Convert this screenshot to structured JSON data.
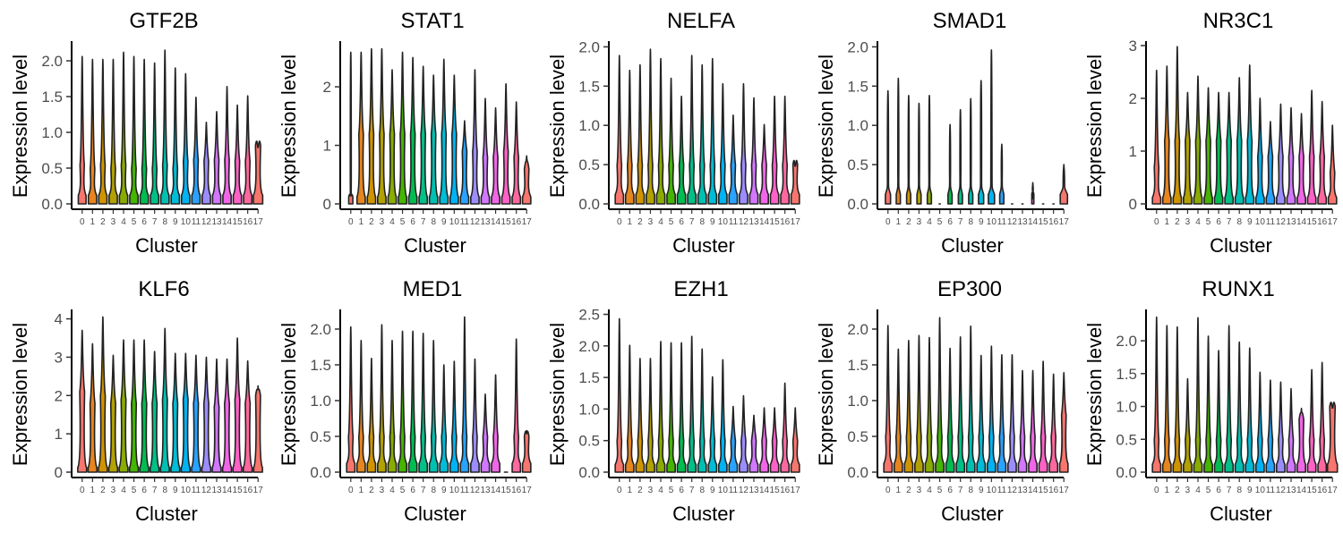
{
  "figure": {
    "ylabel": "Expression level",
    "xlabel": "Cluster"
  },
  "chart_data": [
    {
      "type": "violin",
      "title": "GTF2B",
      "xlabel": "Cluster",
      "ylabel": "Expression level",
      "categories": [
        "0",
        "1",
        "2",
        "3",
        "4",
        "5",
        "6",
        "7",
        "8",
        "9",
        "10",
        "11",
        "12",
        "13",
        "14",
        "15",
        "16",
        "17"
      ],
      "ylim": [
        0,
        2.25
      ],
      "yticks": [
        0,
        0.5,
        1.0,
        1.5,
        2.0
      ],
      "ytick_labels": [
        "0.0",
        "0.5",
        "1.0",
        "1.5",
        "2.0"
      ],
      "max": [
        2.06,
        2.02,
        2.02,
        2.02,
        2.12,
        2.06,
        2.02,
        1.97,
        2.15,
        1.9,
        1.82,
        1.49,
        1.14,
        1.29,
        1.64,
        1.38,
        1.51,
        0.82
      ],
      "upper_mode": [
        0.55,
        0.5,
        0.55,
        0.5,
        0.55,
        0.5,
        0.5,
        0.5,
        0.55,
        0.5,
        0.6,
        0.62,
        0.6,
        0.62,
        0.62,
        0.6,
        0.6,
        0.82
      ],
      "base_width": [
        0.75,
        0.8,
        0.8,
        0.8,
        0.8,
        0.8,
        0.8,
        0.8,
        0.8,
        0.8,
        0.8,
        0.8,
        0.8,
        0.8,
        0.8,
        0.8,
        0.8,
        0.9
      ]
    },
    {
      "type": "violin",
      "title": "STAT1",
      "xlabel": "Cluster",
      "ylabel": "Expression level",
      "categories": [
        "0",
        "1",
        "2",
        "3",
        "4",
        "5",
        "6",
        "7",
        "8",
        "9",
        "10",
        "11",
        "12",
        "13",
        "14",
        "15",
        "16",
        "17"
      ],
      "ylim": [
        0,
        2.75
      ],
      "yticks": [
        0,
        1,
        2
      ],
      "ytick_labels": [
        "0",
        "1",
        "2"
      ],
      "max": [
        2.59,
        2.59,
        2.65,
        2.65,
        2.29,
        2.59,
        2.5,
        2.35,
        2.2,
        2.47,
        2.2,
        1.42,
        2.29,
        1.8,
        1.64,
        2.05,
        1.74,
        0.82
      ],
      "upper_mode": [
        0.2,
        1.2,
        1.2,
        1.2,
        1.2,
        1.2,
        1.2,
        1.2,
        1.2,
        1.2,
        1.2,
        0.9,
        0.9,
        0.8,
        0.8,
        0.9,
        0.8,
        0.6
      ],
      "base_width": [
        0.4,
        0.8,
        0.8,
        0.8,
        0.8,
        0.8,
        0.8,
        0.8,
        0.8,
        0.8,
        0.8,
        0.8,
        0.8,
        0.8,
        0.8,
        0.8,
        0.8,
        0.8
      ]
    },
    {
      "type": "violin",
      "title": "NELFA",
      "xlabel": "Cluster",
      "ylabel": "Expression level",
      "categories": [
        "0",
        "1",
        "2",
        "3",
        "4",
        "5",
        "6",
        "7",
        "8",
        "9",
        "10",
        "11",
        "12",
        "13",
        "14",
        "15",
        "16",
        "17"
      ],
      "ylim": [
        0,
        2.05
      ],
      "yticks": [
        0,
        0.5,
        1.0,
        1.5,
        2.0
      ],
      "ytick_labels": [
        "0.0",
        "0.5",
        "1.0",
        "1.5",
        "2.0"
      ],
      "max": [
        1.89,
        1.7,
        1.77,
        1.97,
        1.85,
        1.6,
        1.37,
        1.89,
        1.77,
        1.85,
        1.53,
        1.13,
        1.53,
        1.35,
        1.01,
        1.37,
        1.37,
        0.51
      ],
      "upper_mode": [
        0.5,
        0.5,
        0.5,
        0.5,
        0.5,
        0.5,
        0.5,
        0.5,
        0.5,
        0.5,
        0.5,
        0.5,
        0.5,
        0.5,
        0.5,
        0.5,
        0.5,
        0.5
      ],
      "base_width": [
        0.8,
        0.8,
        0.8,
        0.8,
        0.8,
        0.8,
        0.8,
        0.8,
        0.8,
        0.8,
        0.8,
        0.8,
        0.8,
        0.8,
        0.8,
        0.8,
        0.8,
        0.8
      ]
    },
    {
      "type": "violin",
      "title": "SMAD1",
      "xlabel": "Cluster",
      "ylabel": "Expression level",
      "categories": [
        "0",
        "1",
        "2",
        "3",
        "4",
        "5",
        "6",
        "7",
        "8",
        "9",
        "10",
        "11",
        "12",
        "13",
        "14",
        "15",
        "16",
        "17"
      ],
      "ylim": [
        0,
        2.05
      ],
      "yticks": [
        0,
        0.5,
        1.0,
        1.5,
        2.0
      ],
      "ytick_labels": [
        "0.0",
        "0.5",
        "1.0",
        "1.5",
        "2.0"
      ],
      "max": [
        1.44,
        1.6,
        1.38,
        1.28,
        1.38,
        0.0,
        1.01,
        1.2,
        1.34,
        1.57,
        1.96,
        0.76,
        0.0,
        0.0,
        0.27,
        0.0,
        0.0,
        0.5
      ],
      "upper_mode": [
        0.3,
        0.3,
        0.3,
        0.3,
        0.3,
        0.0,
        0.3,
        0.3,
        0.3,
        0.3,
        0.3,
        0.3,
        0.0,
        0.0,
        0.1,
        0.0,
        0.0,
        0.3
      ],
      "base_width": [
        0.5,
        0.4,
        0.4,
        0.4,
        0.4,
        0.2,
        0.4,
        0.4,
        0.4,
        0.5,
        0.6,
        0.4,
        0.2,
        0.2,
        0.2,
        0.2,
        0.2,
        0.7
      ]
    },
    {
      "type": "violin",
      "title": "NR3C1",
      "xlabel": "Cluster",
      "ylabel": "Expression level",
      "categories": [
        "0",
        "1",
        "2",
        "3",
        "4",
        "5",
        "6",
        "7",
        "8",
        "9",
        "10",
        "11",
        "12",
        "13",
        "14",
        "15",
        "16",
        "17"
      ],
      "ylim": [
        0,
        3.05
      ],
      "yticks": [
        0,
        1,
        2,
        3
      ],
      "ytick_labels": [
        "0",
        "1",
        "2",
        "3"
      ],
      "max": [
        2.53,
        2.61,
        2.98,
        2.11,
        2.42,
        2.2,
        2.11,
        2.11,
        2.39,
        2.63,
        2.0,
        1.56,
        1.89,
        1.82,
        1.71,
        2.15,
        1.94,
        1.49
      ],
      "upper_mode": [
        0.7,
        1.2,
        1.2,
        1.2,
        1.2,
        1.2,
        1.2,
        1.2,
        1.2,
        1.2,
        0.9,
        0.9,
        0.9,
        0.9,
        0.9,
        0.9,
        0.9,
        0.6
      ],
      "base_width": [
        0.8,
        0.8,
        0.8,
        0.8,
        0.8,
        0.8,
        0.8,
        0.8,
        0.8,
        0.8,
        0.8,
        0.8,
        0.8,
        0.8,
        0.8,
        0.8,
        0.8,
        0.8
      ]
    },
    {
      "type": "violin",
      "title": "KLF6",
      "xlabel": "Cluster",
      "ylabel": "Expression level",
      "categories": [
        "0",
        "1",
        "2",
        "3",
        "4",
        "5",
        "6",
        "7",
        "8",
        "9",
        "10",
        "11",
        "12",
        "13",
        "14",
        "15",
        "16",
        "17"
      ],
      "ylim": [
        0,
        4.2
      ],
      "yticks": [
        0,
        1,
        2,
        3,
        4
      ],
      "ytick_labels": [
        "0",
        "1",
        "2",
        "3",
        "4"
      ],
      "max": [
        3.7,
        3.35,
        4.05,
        3.05,
        3.45,
        3.45,
        3.45,
        3.15,
        3.75,
        3.1,
        3.1,
        3.05,
        3.0,
        2.95,
        2.95,
        3.5,
        2.9,
        2.25
      ],
      "upper_mode": [
        2.1,
        1.8,
        2.0,
        1.8,
        1.9,
        1.8,
        1.8,
        1.8,
        1.9,
        1.8,
        1.9,
        1.8,
        1.8,
        1.7,
        1.8,
        1.9,
        1.8,
        2.0
      ],
      "base_width": [
        0.85,
        0.85,
        0.85,
        0.85,
        0.85,
        0.85,
        0.85,
        0.85,
        0.85,
        0.85,
        0.85,
        0.85,
        0.85,
        0.85,
        0.85,
        0.85,
        0.85,
        0.85
      ]
    },
    {
      "type": "violin",
      "title": "MED1",
      "xlabel": "Cluster",
      "ylabel": "Expression level",
      "categories": [
        "0",
        "1",
        "2",
        "3",
        "4",
        "5",
        "6",
        "7",
        "8",
        "9",
        "10",
        "11",
        "12",
        "13",
        "14",
        "15",
        "16",
        "17"
      ],
      "ylim": [
        0,
        2.25
      ],
      "yticks": [
        0,
        0.5,
        1.0,
        1.5,
        2.0
      ],
      "ytick_labels": [
        "0.0",
        "0.5",
        "1.0",
        "1.5",
        "2.0"
      ],
      "max": [
        2.03,
        1.84,
        1.59,
        2.06,
        1.84,
        1.97,
        1.97,
        1.94,
        1.84,
        1.5,
        1.55,
        2.17,
        1.58,
        1.09,
        1.36,
        0.0,
        1.86,
        0.58
      ],
      "upper_mode": [
        0.5,
        0.5,
        0.5,
        0.5,
        0.5,
        0.5,
        0.5,
        0.5,
        0.5,
        0.5,
        0.5,
        0.5,
        0.5,
        0.5,
        0.5,
        0.0,
        0.5,
        0.5
      ],
      "base_width": [
        0.8,
        0.8,
        0.8,
        0.8,
        0.8,
        0.8,
        0.8,
        0.8,
        0.8,
        0.8,
        0.8,
        0.8,
        0.8,
        0.8,
        0.8,
        0.5,
        0.8,
        0.8
      ]
    },
    {
      "type": "violin",
      "title": "EZH1",
      "xlabel": "Cluster",
      "ylabel": "Expression level",
      "categories": [
        "0",
        "1",
        "2",
        "3",
        "4",
        "5",
        "6",
        "7",
        "8",
        "9",
        "10",
        "11",
        "12",
        "13",
        "14",
        "15",
        "16",
        "17"
      ],
      "ylim": [
        0,
        2.55
      ],
      "yticks": [
        0,
        0.5,
        1.0,
        1.5,
        2.0,
        2.5
      ],
      "ytick_labels": [
        "0.0",
        "0.5",
        "1.0",
        "1.5",
        "2.0",
        "2.5"
      ],
      "max": [
        2.43,
        2.01,
        1.8,
        1.8,
        2.07,
        2.05,
        2.05,
        2.15,
        1.95,
        1.51,
        1.78,
        1.04,
        1.21,
        0.9,
        1.02,
        1.02,
        1.41,
        1.02
      ],
      "upper_mode": [
        0.5,
        0.5,
        0.5,
        0.5,
        0.5,
        0.5,
        0.5,
        0.5,
        0.5,
        0.5,
        0.5,
        0.5,
        0.5,
        0.5,
        0.5,
        0.5,
        0.5,
        0.5
      ],
      "base_width": [
        0.8,
        0.8,
        0.8,
        0.8,
        0.8,
        0.8,
        0.8,
        0.8,
        0.8,
        0.8,
        0.8,
        0.8,
        0.8,
        0.8,
        0.8,
        0.8,
        0.8,
        0.8
      ]
    },
    {
      "type": "violin",
      "title": "EP300",
      "xlabel": "Cluster",
      "ylabel": "Expression level",
      "categories": [
        "0",
        "1",
        "2",
        "3",
        "4",
        "5",
        "6",
        "7",
        "8",
        "9",
        "10",
        "11",
        "12",
        "13",
        "14",
        "15",
        "16",
        "17"
      ],
      "ylim": [
        0,
        2.25
      ],
      "yticks": [
        0,
        0.5,
        1.0,
        1.5,
        2.0
      ],
      "ytick_labels": [
        "0.0",
        "0.5",
        "1.0",
        "1.5",
        "2.0"
      ],
      "max": [
        2.05,
        1.72,
        1.84,
        1.91,
        1.88,
        2.16,
        1.73,
        1.89,
        2.04,
        1.63,
        1.76,
        1.64,
        1.64,
        1.42,
        1.42,
        1.55,
        1.37,
        1.39
      ],
      "upper_mode": [
        0.5,
        0.5,
        0.5,
        0.5,
        0.5,
        0.5,
        0.5,
        0.5,
        0.5,
        0.5,
        0.5,
        0.5,
        0.5,
        0.5,
        0.5,
        0.5,
        0.5,
        0.8
      ],
      "base_width": [
        0.8,
        0.8,
        0.8,
        0.8,
        0.8,
        0.8,
        0.8,
        0.8,
        0.8,
        0.8,
        0.8,
        0.8,
        0.8,
        0.8,
        0.8,
        0.8,
        0.8,
        0.8
      ]
    },
    {
      "type": "violin",
      "title": "RUNX1",
      "xlabel": "Cluster",
      "ylabel": "Expression level",
      "categories": [
        "0",
        "1",
        "2",
        "3",
        "4",
        "5",
        "6",
        "7",
        "8",
        "9",
        "10",
        "11",
        "12",
        "13",
        "14",
        "15",
        "16",
        "17"
      ],
      "ylim": [
        0,
        2.45
      ],
      "yticks": [
        0,
        0.5,
        1.0,
        1.5,
        2.0
      ],
      "ytick_labels": [
        "0.0",
        "0.5",
        "1.0",
        "1.5",
        "2.0"
      ],
      "max": [
        2.36,
        2.23,
        2.21,
        1.42,
        2.35,
        2.07,
        1.85,
        2.23,
        1.98,
        1.89,
        1.52,
        1.4,
        1.37,
        1.27,
        0.97,
        1.56,
        1.67,
        1.01
      ],
      "upper_mode": [
        0.5,
        0.5,
        0.5,
        0.5,
        0.5,
        0.5,
        0.5,
        0.5,
        0.5,
        0.5,
        0.5,
        0.5,
        0.5,
        0.5,
        0.8,
        0.5,
        0.5,
        1.0
      ],
      "base_width": [
        0.8,
        0.8,
        0.8,
        0.8,
        0.8,
        0.8,
        0.8,
        0.8,
        0.8,
        0.8,
        0.8,
        0.8,
        0.8,
        0.8,
        0.8,
        0.8,
        0.8,
        0.95
      ]
    }
  ],
  "cluster_colors": [
    "#F8766D",
    "#E7851E",
    "#D09400",
    "#B2A100",
    "#89AC00",
    "#45B500",
    "#00BC51",
    "#00C087",
    "#00C0B2",
    "#00BCD6",
    "#00B3F2",
    "#29A3FF",
    "#9C8DFF",
    "#D277FF",
    "#F166E8",
    "#FF61C7",
    "#FF689E",
    "#F8766D"
  ]
}
